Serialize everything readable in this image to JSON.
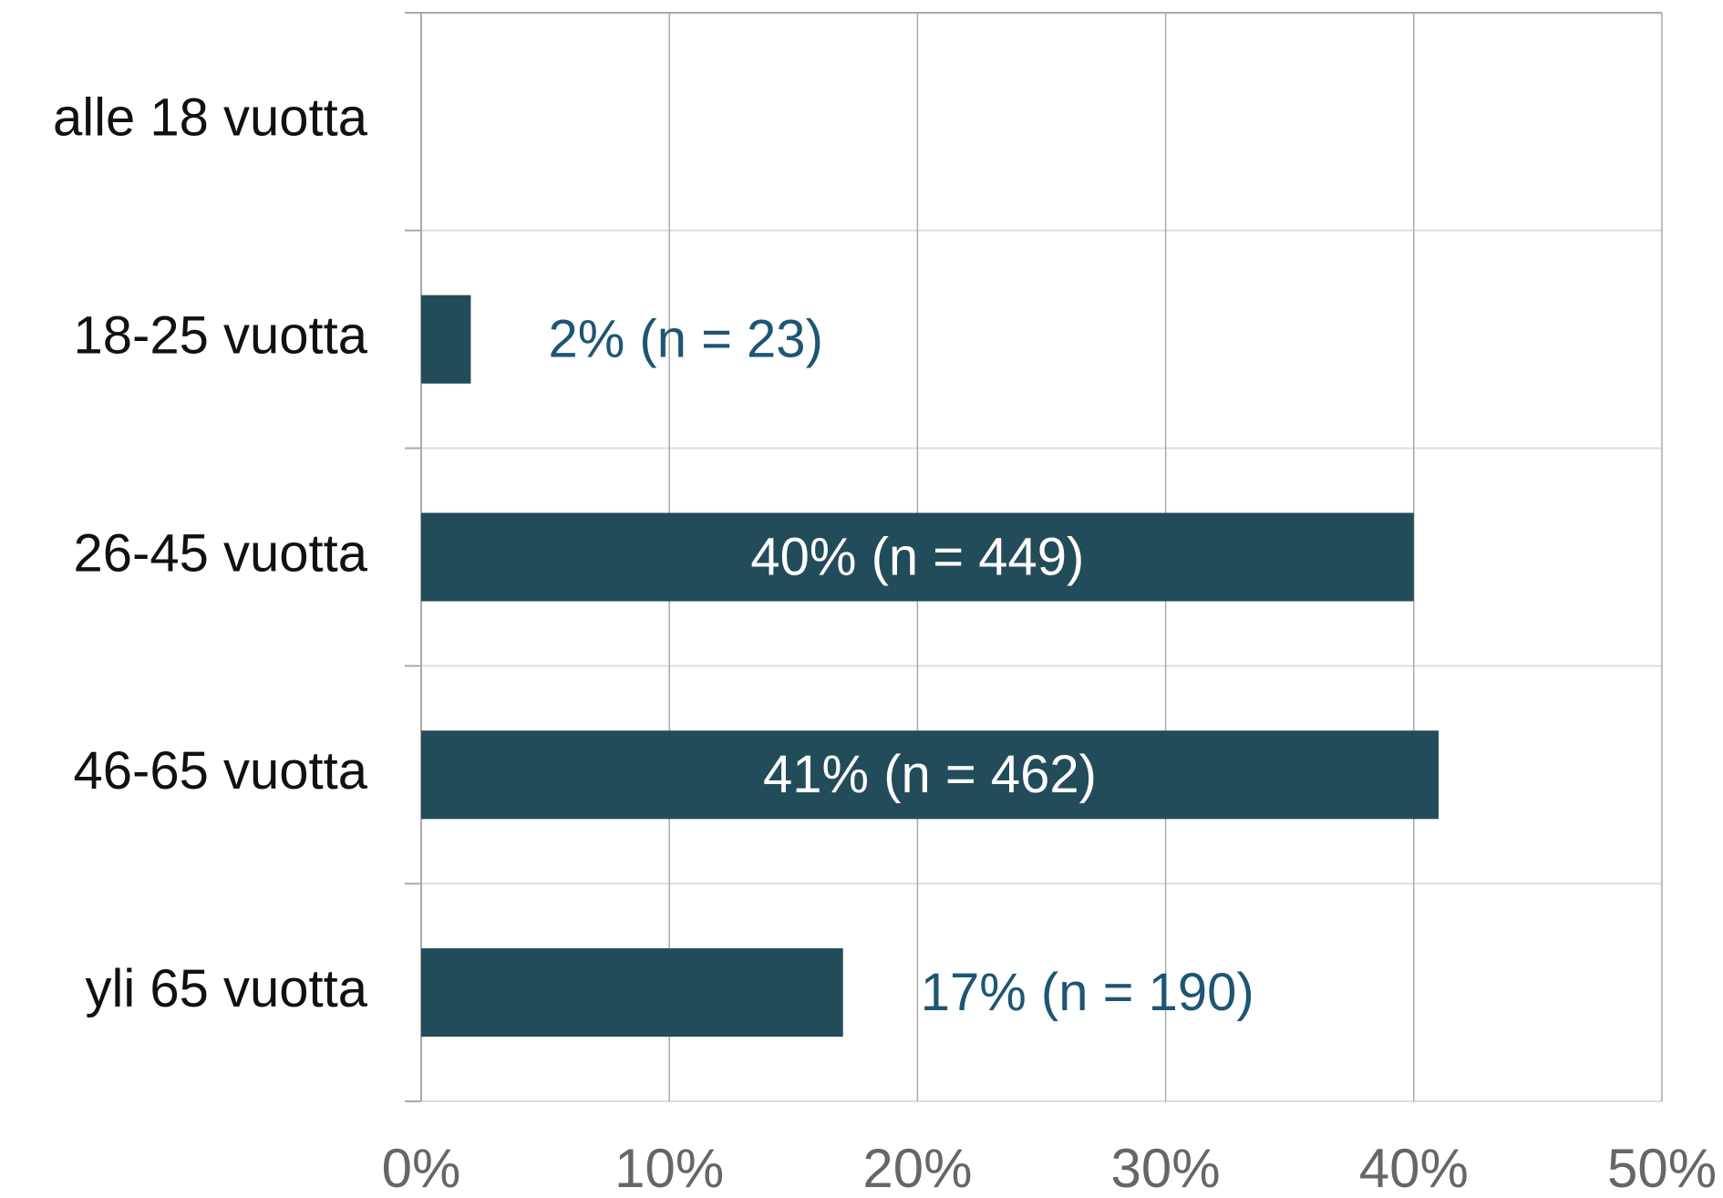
{
  "chart_data": {
    "type": "hbar",
    "categories": [
      "alle 18 vuotta",
      "18-25 vuotta",
      "26-45 vuotta",
      "46-65 vuotta",
      "yli 65 vuotta"
    ],
    "values": [
      0,
      2,
      40,
      41,
      17
    ],
    "value_labels": [
      null,
      "2% (n = 23)",
      "40% (n = 449)",
      "41% (n = 462)",
      "17% (n = 190)"
    ],
    "color": "#234c5a",
    "xlim": [
      0,
      50
    ],
    "xticks": [
      {
        "value": 0,
        "label": "0%"
      },
      {
        "value": 10,
        "label": "10%"
      },
      {
        "value": 20,
        "label": "20%"
      },
      {
        "value": 30,
        "label": "30%"
      },
      {
        "value": 40,
        "label": "40%"
      },
      {
        "value": 50,
        "label": "50%"
      }
    ],
    "grid": true
  }
}
